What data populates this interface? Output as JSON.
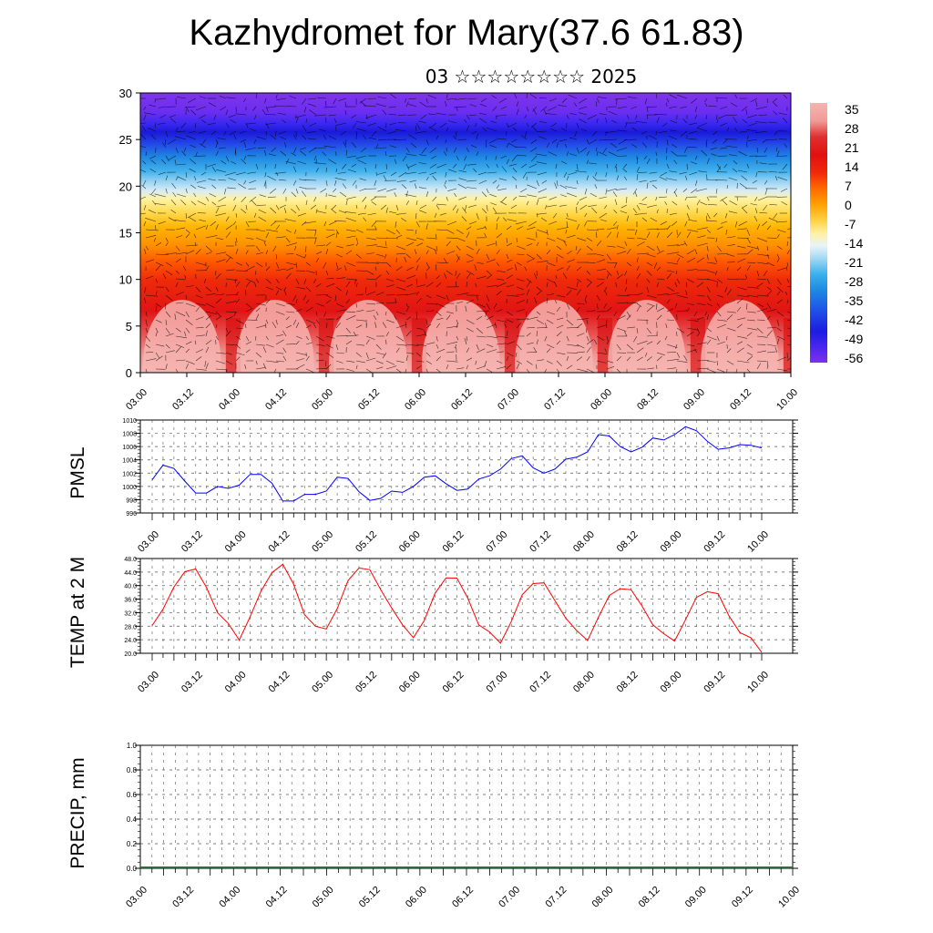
{
  "title": "Kazhydromet for Mary(37.6 61.83)",
  "subtitle": "03 ☆☆☆☆☆☆☆☆ 2025",
  "chart_data": [
    {
      "type": "heatmap",
      "title": "",
      "ylim": [
        0,
        30
      ],
      "y_ticks": [
        "0",
        "5",
        "10",
        "15",
        "20",
        "25",
        "30"
      ],
      "x_ticks": [
        "03.00",
        "03.12",
        "04.00",
        "04.12",
        "05.00",
        "05.12",
        "06.00",
        "06.12",
        "07.00",
        "07.12",
        "08.00",
        "08.12",
        "09.00",
        "09.12",
        "10.00"
      ],
      "colorbar_labels": [
        "35",
        "28",
        "21",
        "14",
        "7",
        "0",
        "-7",
        "-14",
        "-21",
        "-28",
        "-35",
        "-42",
        "-49",
        "-56"
      ],
      "colorbar_colors": [
        "#f6b4b0",
        "#e34040",
        "#e01010",
        "#ff6a00",
        "#ffb000",
        "#ffe060",
        "#fff7b0",
        "#c8e8f8",
        "#80ccf5",
        "#2ea6ea",
        "#2060e0",
        "#3030f0",
        "#5020f0",
        "#8030e8"
      ],
      "grid": false,
      "overlay": "wind barbs"
    },
    {
      "type": "line",
      "ylabel": "PMSL",
      "ylim": [
        996,
        1010
      ],
      "y_ticks": [
        "996",
        "998",
        "1000",
        "1002",
        "1004",
        "1006",
        "1008",
        "1010"
      ],
      "x_ticks": [
        "03.00",
        "03.12",
        "04.00",
        "04.12",
        "05.00",
        "05.12",
        "06.00",
        "06.12",
        "07.00",
        "07.12",
        "08.00",
        "08.12",
        "09.00",
        "09.12",
        "10.00"
      ],
      "grid": true,
      "series": [
        {
          "color": "#0000ff",
          "values": [
            1001.0,
            1003.2,
            1002.7,
            1000.8,
            999.0,
            999.0,
            1000.0,
            999.7,
            1000.2,
            1001.8,
            1001.8,
            1000.5,
            997.8,
            997.8,
            998.8,
            998.8,
            999.3,
            1001.4,
            1001.2,
            999.2,
            997.9,
            998.2,
            999.3,
            999.1,
            1000.0,
            1001.4,
            1001.6,
            1000.4,
            999.4,
            999.6,
            1001.1,
            1001.6,
            1002.6,
            1004.2,
            1004.6,
            1002.8,
            1002.0,
            1002.6,
            1004.1,
            1004.4,
            1005.2,
            1007.8,
            1007.6,
            1006.0,
            1005.2,
            1005.9,
            1007.3,
            1007.0,
            1007.8,
            1009.0,
            1008.4,
            1006.8,
            1005.6,
            1005.8,
            1006.3,
            1006.2,
            1005.8
          ]
        }
      ]
    },
    {
      "type": "line",
      "ylabel": "TEMP at 2 M",
      "ylim": [
        20,
        48
      ],
      "y_ticks": [
        "20.0",
        "24.0",
        "28.0",
        "32.0",
        "36.0",
        "40.0",
        "44.0",
        "48.0"
      ],
      "x_ticks": [
        "03.00",
        "03.12",
        "04.00",
        "04.12",
        "05.00",
        "05.12",
        "06.00",
        "06.12",
        "07.00",
        "07.12",
        "08.00",
        "08.12",
        "09.00",
        "09.12",
        "10.00"
      ],
      "grid": true,
      "series": [
        {
          "color": "#ff0000",
          "values": [
            28.2,
            33.0,
            39.6,
            44.1,
            44.9,
            39.4,
            32.0,
            28.8,
            23.9,
            30.8,
            38.4,
            43.8,
            46.3,
            40.4,
            31.4,
            28.0,
            27.2,
            33.2,
            41.5,
            45.2,
            44.7,
            38.8,
            33.4,
            28.4,
            24.6,
            29.7,
            37.8,
            42.3,
            42.2,
            36.3,
            28.4,
            26.3,
            23.0,
            29.4,
            37.3,
            40.6,
            40.8,
            35.6,
            30.4,
            26.7,
            23.8,
            30.7,
            37.1,
            39.1,
            38.8,
            34.0,
            28.4,
            25.8,
            23.6,
            29.9,
            36.5,
            38.2,
            37.6,
            31.0,
            26.1,
            24.6,
            20.3
          ]
        }
      ]
    },
    {
      "type": "bar",
      "ylabel": "PRECIP, mm",
      "ylim": [
        0,
        1
      ],
      "y_ticks": [
        "0.0",
        "0.2",
        "0.4",
        "0.6",
        "0.8",
        "1.0"
      ],
      "x_ticks": [
        "03.00",
        "03.12",
        "04.00",
        "04.12",
        "05.00",
        "05.12",
        "06.00",
        "06.12",
        "07.00",
        "07.12",
        "08.00",
        "08.12",
        "09.00",
        "09.12",
        "10.00"
      ],
      "grid": true,
      "values": [
        0,
        0,
        0,
        0,
        0,
        0,
        0,
        0,
        0,
        0,
        0,
        0,
        0,
        0,
        0,
        0,
        0,
        0,
        0,
        0,
        0,
        0,
        0,
        0,
        0,
        0,
        0,
        0,
        0,
        0,
        0,
        0,
        0,
        0,
        0,
        0,
        0,
        0,
        0,
        0,
        0,
        0,
        0,
        0,
        0,
        0,
        0,
        0,
        0,
        0,
        0,
        0,
        0,
        0,
        0,
        0,
        0
      ]
    }
  ]
}
